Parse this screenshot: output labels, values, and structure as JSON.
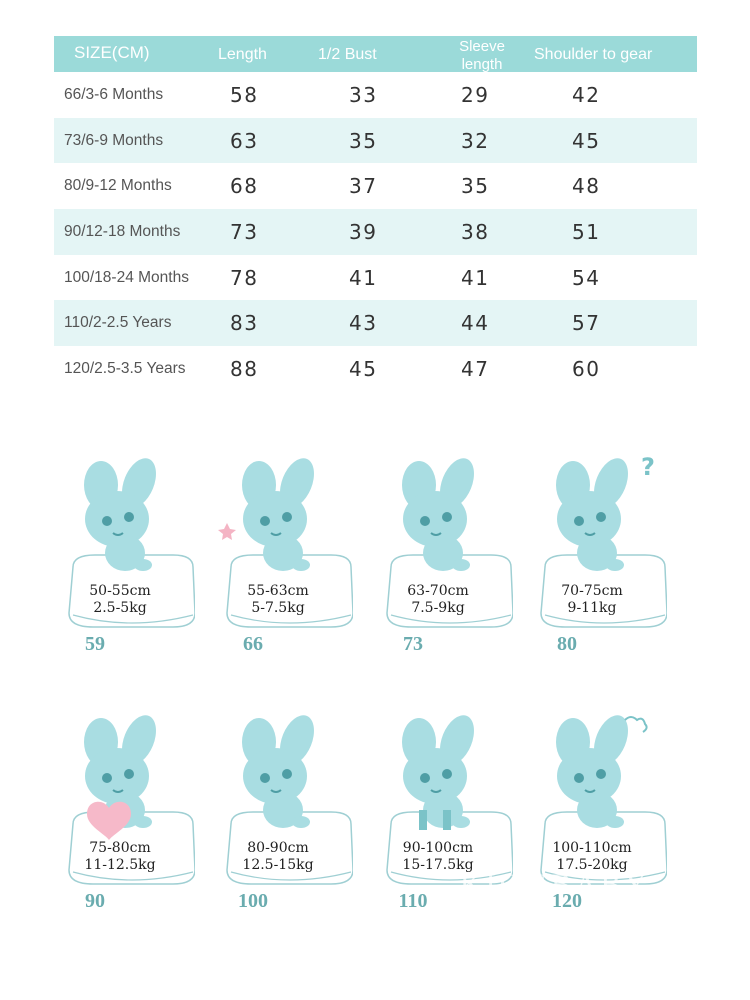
{
  "size_table": {
    "headers": [
      "SIZE(CM)",
      "Length",
      "1/2 Bust",
      "Sleeve length",
      "Shoulder to gear"
    ],
    "rows": [
      [
        "66/3-6 Months",
        "58",
        "33",
        "29",
        "42"
      ],
      [
        "73/6-9 Months",
        "63",
        "35",
        "32",
        "45"
      ],
      [
        "80/9-12 Months",
        "68",
        "37",
        "35",
        "48"
      ],
      [
        "90/12-18 Months",
        "73",
        "39",
        "38",
        "51"
      ],
      [
        "100/18-24 Months",
        "78",
        "41",
        "41",
        "54"
      ],
      [
        "110/2-2.5 Years",
        "83",
        "43",
        "44",
        "57"
      ],
      [
        "120/2.5-3.5 Years",
        "88",
        "45",
        "47",
        "60"
      ]
    ]
  },
  "size_cards": [
    {
      "height": "50-55cm",
      "weight": "2.5-5kg",
      "size": "59",
      "icon": "bunny-smile-icon"
    },
    {
      "height": "55-63cm",
      "weight": "5-7.5kg",
      "size": "66",
      "icon": "bunny-star-icon"
    },
    {
      "height": "63-70cm",
      "weight": "7.5-9kg",
      "size": "73",
      "icon": "bunny-surprised-icon"
    },
    {
      "height": "70-75cm",
      "weight": "9-11kg",
      "size": "80",
      "icon": "bunny-question-icon"
    },
    {
      "height": "75-80cm",
      "weight": "11-12.5kg",
      "size": "90",
      "icon": "bunny-heart-icon"
    },
    {
      "height": "80-90cm",
      "weight": "12.5-15kg",
      "size": "100",
      "icon": "bunny-sitting-icon"
    },
    {
      "height": "90-100cm",
      "weight": "15-17.5kg",
      "size": "110",
      "icon": "bunny-crying-icon"
    },
    {
      "height": "100-110cm",
      "weight": "17.5-20kg",
      "size": "120",
      "icon": "bunny-angry-icon"
    }
  ],
  "watermark": "KIGUBABY",
  "colors": {
    "header": "#9bdad9",
    "stripe": "#e4f5f5",
    "bunny": "#a9dde2",
    "size_label": "#6aacaf"
  }
}
